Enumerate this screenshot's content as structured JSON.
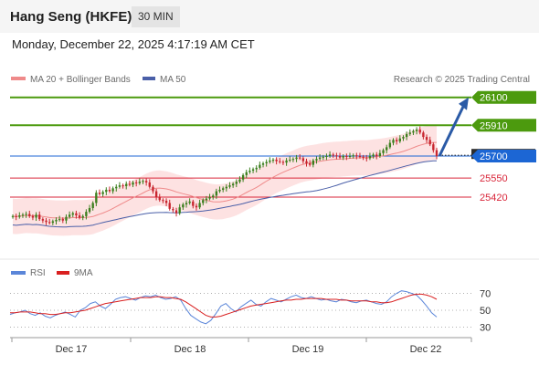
{
  "header": {
    "title": "Hang Seng (HKFE)",
    "timeframe": "30 MIN"
  },
  "datetime": "Monday, December 22, 2025 4:17:19 AM CET",
  "legend": {
    "ma20_bb": "MA 20 + Bollinger Bands",
    "ma50": "MA 50",
    "copyright": "Research © 2025 Trading Central"
  },
  "rsi_legend": {
    "rsi": "RSI",
    "ma9": "9MA"
  },
  "colors": {
    "resistance": "#4c9a0e",
    "pivot": "#1c66d4",
    "support": "#d9263a",
    "bollinger_fill": "#fddddd",
    "ma20": "#ef8a8a",
    "ma50": "#4a5fa8",
    "candle_up": "#3c7f1e",
    "candle_down": "#c8252e",
    "rsi": "#5b86d9",
    "rsi_ma": "#d92020",
    "arrow": "#2a5aa6"
  },
  "chart_data": [
    {
      "type": "candlestick",
      "title": "Hang Seng (HKFE)",
      "x_tick_labels": [
        "Dec 17",
        "Dec 18",
        "Dec 19",
        "Dec 22"
      ],
      "levels": [
        {
          "label": "26100",
          "value": 26100,
          "role": "resistance"
        },
        {
          "label": "25910",
          "value": 25910,
          "role": "resistance"
        },
        {
          "label": "25700",
          "value": 25700,
          "role": "pivot"
        },
        {
          "label": "25550",
          "value": 25550,
          "role": "support"
        },
        {
          "label": "25420",
          "value": 25420,
          "role": "support"
        }
      ],
      "last_price_label": "25700",
      "close_series": [
        25290,
        25285,
        25295,
        25300,
        25305,
        25290,
        25280,
        25300,
        25270,
        25260,
        25250,
        25245,
        25255,
        25265,
        25270,
        25260,
        25285,
        25300,
        25310,
        25295,
        25280,
        25290,
        25320,
        25345,
        25380,
        25450,
        25440,
        25455,
        25470,
        25460,
        25480,
        25490,
        25500,
        25495,
        25510,
        25505,
        25520,
        25515,
        25525,
        25530,
        25520,
        25490,
        25460,
        25420,
        25400,
        25395,
        25380,
        25340,
        25330,
        25310,
        25350,
        25370,
        25380,
        25390,
        25360,
        25350,
        25380,
        25400,
        25410,
        25420,
        25430,
        25460,
        25470,
        25480,
        25490,
        25500,
        25510,
        25525,
        25540,
        25570,
        25590,
        25600,
        25610,
        25620,
        25640,
        25650,
        25660,
        25670,
        25675,
        25665,
        25660,
        25655,
        25670,
        25675,
        25680,
        25690,
        25685,
        25665,
        25650,
        25640,
        25670,
        25680,
        25690,
        25695,
        25700,
        25710,
        25705,
        25700,
        25690,
        25700,
        25695,
        25700,
        25705,
        25700,
        25695,
        25690,
        25685,
        25700,
        25710,
        25700,
        25720,
        25740,
        25760,
        25790,
        25810,
        25800,
        25820,
        25830,
        25850,
        25860,
        25870,
        25880,
        25860,
        25830,
        25810,
        25780,
        25740,
        25700
      ],
      "ma20_band_width": 120,
      "forecast": {
        "from": 25700,
        "to": 26100,
        "direction": "up"
      }
    },
    {
      "type": "line",
      "title": "RSI",
      "y_ticks": [
        70,
        50,
        30
      ],
      "ylim": [
        20,
        80
      ],
      "series": [
        {
          "name": "RSI",
          "values": [
            45,
            47,
            48,
            50,
            46,
            44,
            47,
            43,
            41,
            44,
            46,
            48,
            45,
            42,
            50,
            53,
            58,
            60,
            55,
            52,
            57,
            63,
            65,
            66,
            64,
            62,
            65,
            67,
            66,
            68,
            65,
            63,
            64,
            66,
            62,
            52,
            44,
            40,
            36,
            34,
            38,
            46,
            55,
            58,
            52,
            48,
            54,
            58,
            62,
            57,
            55,
            60,
            64,
            62,
            60,
            63,
            66,
            68,
            65,
            64,
            66,
            64,
            62,
            63,
            61,
            60,
            63,
            62,
            60,
            59,
            61,
            62,
            60,
            58,
            57,
            60,
            66,
            70,
            73,
            72,
            70,
            68,
            62,
            55,
            47,
            42
          ]
        },
        {
          "name": "9MA",
          "values": [
            47,
            47,
            48,
            48,
            48,
            47,
            46,
            46,
            45,
            45,
            46,
            47,
            47,
            48,
            49,
            50,
            52,
            54,
            56,
            58,
            59,
            60,
            61,
            62,
            63,
            64,
            65,
            65,
            65,
            66,
            66,
            65,
            65,
            64,
            63,
            60,
            56,
            52,
            48,
            44,
            42,
            42,
            43,
            45,
            47,
            49,
            51,
            53,
            55,
            56,
            57,
            58,
            59,
            60,
            61,
            62,
            62,
            63,
            63,
            64,
            64,
            64,
            64,
            63,
            63,
            63,
            62,
            62,
            61,
            61,
            61,
            61,
            60,
            60,
            59,
            59,
            60,
            62,
            64,
            66,
            68,
            69,
            69,
            68,
            66,
            63
          ]
        }
      ]
    }
  ]
}
